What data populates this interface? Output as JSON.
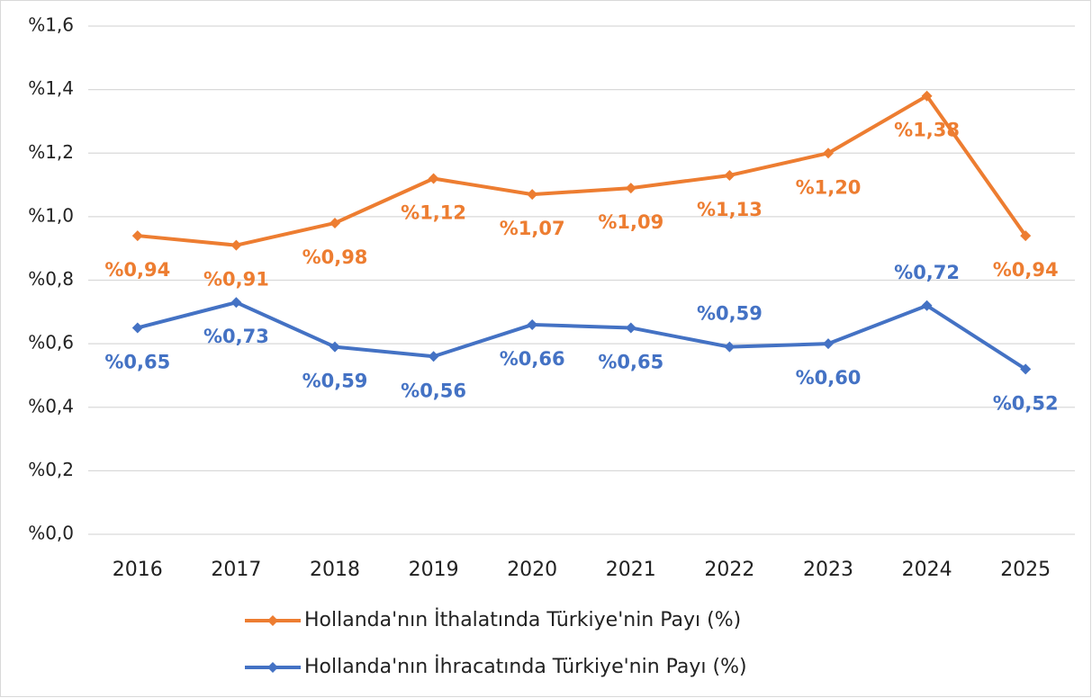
{
  "chart_data": {
    "type": "line",
    "categories": [
      "2016",
      "2017",
      "2018",
      "2019",
      "2020",
      "2021",
      "2022",
      "2023",
      "2024",
      "2025"
    ],
    "series": [
      {
        "name": "Hollanda'nın İthalatında Türkiye'nin Payı (%)",
        "color": "#ed7d31",
        "values": [
          0.94,
          0.91,
          0.98,
          1.12,
          1.07,
          1.09,
          1.13,
          1.2,
          1.38,
          0.94
        ],
        "value_labels": [
          "%0,94",
          "%0,91",
          "%0,98",
          "%1,12",
          "%1,07",
          "%1,09",
          "%1,13",
          "%1,20",
          "%1,38",
          "%0,94"
        ]
      },
      {
        "name": "Hollanda'nın İhracatında Türkiye'nin Payı (%)",
        "color": "#4472c4",
        "values": [
          0.65,
          0.73,
          0.59,
          0.56,
          0.66,
          0.65,
          0.59,
          0.6,
          0.72,
          0.52
        ],
        "value_labels": [
          "%0,65",
          "%0,73",
          "%0,59",
          "%0,56",
          "%0,66",
          "%0,65",
          "%0,59",
          "%0,60",
          "%0,72",
          "%0,52"
        ]
      }
    ],
    "ylim": [
      0,
      1.6
    ],
    "yticks": [
      {
        "value": 0,
        "label": "%0,0"
      },
      {
        "value": 0.2,
        "label": "%0,2"
      },
      {
        "value": 0.4,
        "label": "%0,4"
      },
      {
        "value": 0.6,
        "label": "%0,6"
      },
      {
        "value": 0.8,
        "label": "%0,8"
      },
      {
        "value": 1.0,
        "label": "%1,0"
      },
      {
        "value": 1.2,
        "label": "%1,2"
      },
      {
        "value": 1.4,
        "label": "%1,4"
      },
      {
        "value": 1.6,
        "label": "%1,6"
      }
    ],
    "grid": true,
    "legend": "bottom"
  }
}
